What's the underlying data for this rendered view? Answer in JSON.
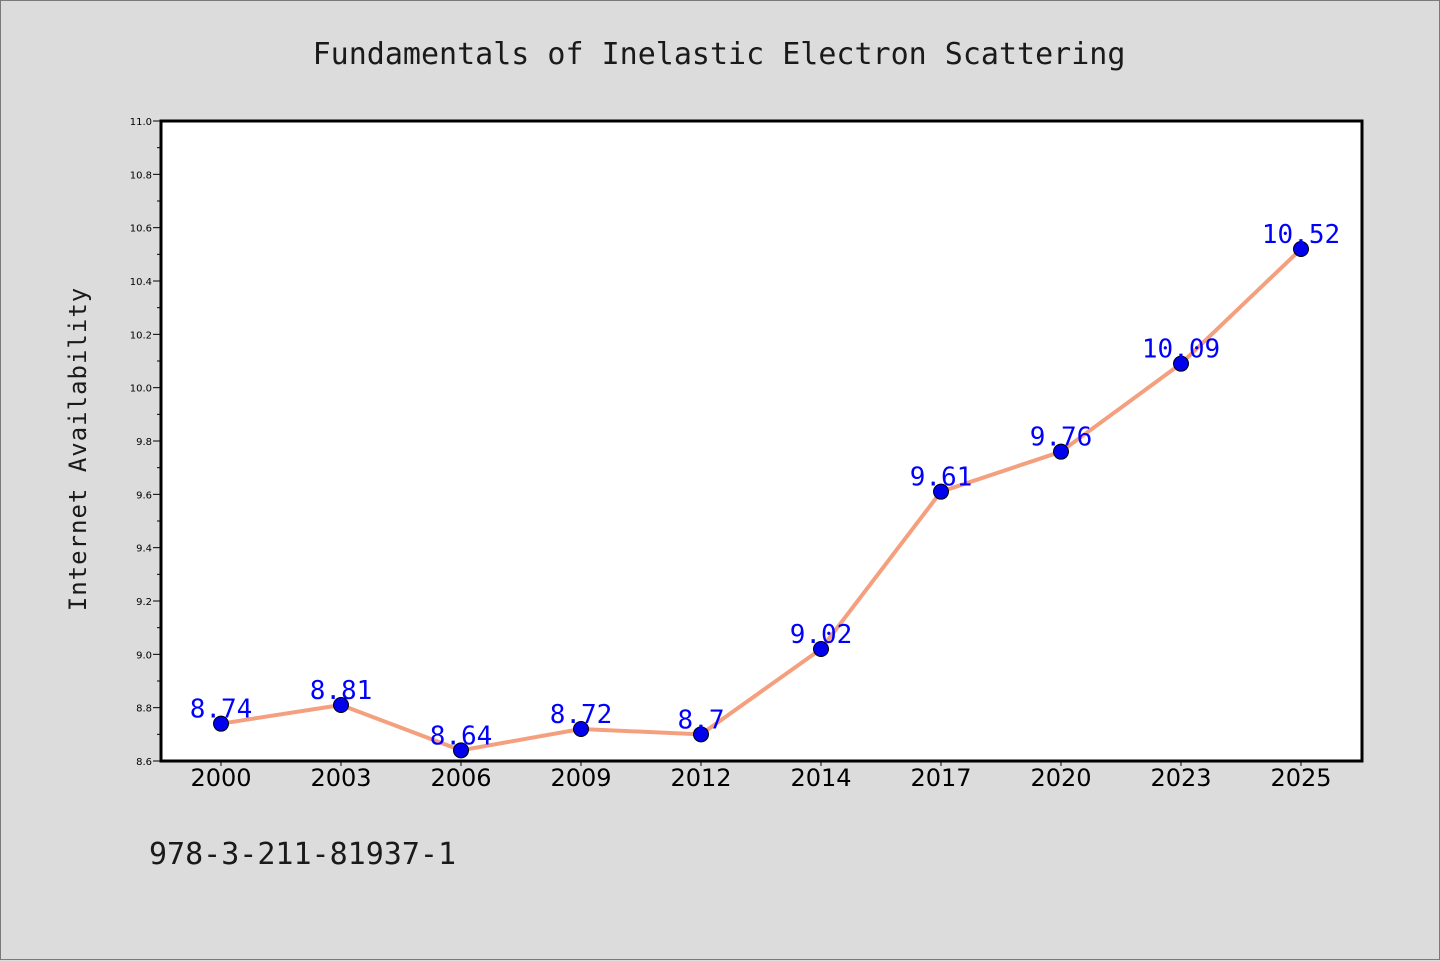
{
  "chart_data": {
    "type": "line",
    "title": "Fundamentals of Inelastic Electron Scattering",
    "xlabel": "",
    "ylabel": "Internet Availability",
    "categories": [
      "2000",
      "2003",
      "2006",
      "2009",
      "2012",
      "2014",
      "2017",
      "2020",
      "2023",
      "2025"
    ],
    "series": [
      {
        "values": [
          8.74,
          8.81,
          8.64,
          8.72,
          8.7,
          9.02,
          9.61,
          9.76,
          10.09,
          10.52
        ],
        "data_labels": [
          "8.74",
          "8.81",
          "8.64",
          "8.72",
          "8.7",
          "9.02",
          "9.61",
          "9.76",
          "10.09",
          "10.52"
        ],
        "line_color": "#f4a07e",
        "marker_color": "#0000ee"
      }
    ],
    "ylim": [
      8.6,
      11.0
    ],
    "yticks": [
      "8.6",
      "8.8",
      "9.0",
      "9.2",
      "9.4",
      "9.6",
      "9.8",
      "10.0",
      "10.2",
      "10.4",
      "10.6",
      "10.8",
      "11.0"
    ],
    "grid": false,
    "legend": "none"
  },
  "footer": {
    "isbn": "978-3-211-81937-1"
  },
  "colors": {
    "background": "#dcdcdc",
    "plot_background": "#ffffff",
    "data_label": "#0000ff"
  }
}
